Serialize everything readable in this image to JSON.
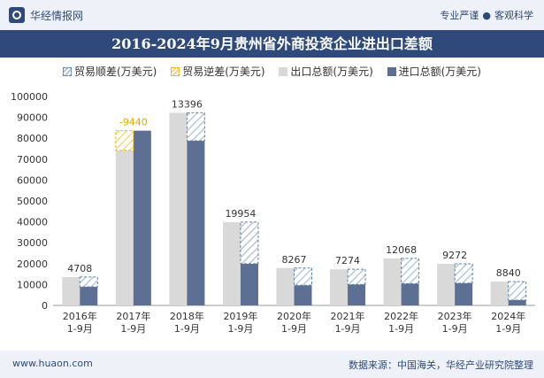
{
  "header": {
    "brand_name": "华经情报网",
    "tag_left": "专业严谨",
    "tag_separator": "●",
    "tag_right": "客观科学"
  },
  "footer": {
    "website": "www.huaon.com",
    "source": "数据来源：中国海关，华经产业研究院整理"
  },
  "colors": {
    "export": "#d9d9d9",
    "import": "#5d6f93",
    "surplus": "#5d82a8",
    "deficit": "#f2b400"
  },
  "chart_data": {
    "type": "bar",
    "title": "2016-2024年9月贵州省外商投资企业进出口差额",
    "categories": [
      "2016年\n1-9月",
      "2017年\n1-9月",
      "2018年\n1-9月",
      "2019年\n1-9月",
      "2020年\n1-9月",
      "2021年\n1-9月",
      "2022年\n1-9月",
      "2023年\n1-9月",
      "2024年\n1-9月"
    ],
    "series": [
      {
        "name": "出口总额(万美元)",
        "values": [
          13600,
          74200,
          92200,
          39900,
          17900,
          17300,
          22500,
          19900,
          11400
        ]
      },
      {
        "name": "进口总额(万美元)",
        "values": [
          8892,
          83640,
          78804,
          19946,
          9633,
          10026,
          10432,
          10628,
          2560
        ]
      }
    ],
    "balance": [
      4708,
      -9440,
      13396,
      19954,
      8267,
      7274,
      12068,
      9272,
      8840
    ],
    "balance_labels": [
      "4708",
      "-9440",
      "13396",
      "19954",
      "8267",
      "7274",
      "12068",
      "9272",
      "8840"
    ],
    "legend": [
      {
        "key": "surplus",
        "label": "贸易顺差(万美元)"
      },
      {
        "key": "deficit",
        "label": "贸易逆差(万美元)"
      },
      {
        "key": "export",
        "label": "出口总额(万美元)"
      },
      {
        "key": "import",
        "label": "进口总额(万美元)"
      }
    ],
    "xlabel": "",
    "ylabel": "",
    "ylim": [
      0,
      100000
    ],
    "yticks": [
      0,
      10000,
      20000,
      30000,
      40000,
      50000,
      60000,
      70000,
      80000,
      90000,
      100000
    ],
    "legend_position": "top-center",
    "grid": false
  }
}
